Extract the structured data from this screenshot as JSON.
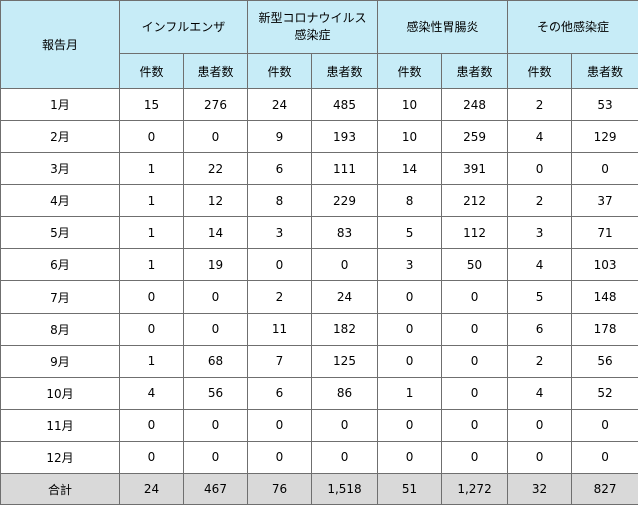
{
  "header": {
    "month_label": "報告月",
    "groups": [
      {
        "name": "インフルエンザ"
      },
      {
        "name": "新型コロナウイルス感染症"
      },
      {
        "name": "感染性胃腸炎"
      },
      {
        "name": "その他感染症"
      }
    ],
    "sub_count": "件数",
    "sub_patients": "患者数"
  },
  "rows": [
    {
      "month": "1月",
      "values": [
        "15",
        "276",
        "24",
        "485",
        "10",
        "248",
        "2",
        "53"
      ]
    },
    {
      "month": "2月",
      "values": [
        "0",
        "0",
        "9",
        "193",
        "10",
        "259",
        "4",
        "129"
      ]
    },
    {
      "month": "3月",
      "values": [
        "1",
        "22",
        "6",
        "111",
        "14",
        "391",
        "0",
        "0"
      ]
    },
    {
      "month": "4月",
      "values": [
        "1",
        "12",
        "8",
        "229",
        "8",
        "212",
        "2",
        "37"
      ]
    },
    {
      "month": "5月",
      "values": [
        "1",
        "14",
        "3",
        "83",
        "5",
        "112",
        "3",
        "71"
      ]
    },
    {
      "month": "6月",
      "values": [
        "1",
        "19",
        "0",
        "0",
        "3",
        "50",
        "4",
        "103"
      ]
    },
    {
      "month": "7月",
      "values": [
        "0",
        "0",
        "2",
        "24",
        "0",
        "0",
        "5",
        "148"
      ]
    },
    {
      "month": "8月",
      "values": [
        "0",
        "0",
        "11",
        "182",
        "0",
        "0",
        "6",
        "178"
      ]
    },
    {
      "month": "9月",
      "values": [
        "1",
        "68",
        "7",
        "125",
        "0",
        "0",
        "2",
        "56"
      ]
    },
    {
      "month": "10月",
      "values": [
        "4",
        "56",
        "6",
        "86",
        "1",
        "0",
        "4",
        "52"
      ]
    },
    {
      "month": "11月",
      "values": [
        "0",
        "0",
        "0",
        "0",
        "0",
        "0",
        "0",
        "0"
      ]
    },
    {
      "month": "12月",
      "values": [
        "0",
        "0",
        "0",
        "0",
        "0",
        "0",
        "0",
        "0"
      ]
    }
  ],
  "total": {
    "label": "合計",
    "values": [
      "24",
      "467",
      "76",
      "1,518",
      "51",
      "1,272",
      "32",
      "827"
    ]
  },
  "colors": {
    "header_bg": "#c7ecf7",
    "total_bg": "#d9d9d9",
    "border": "#6f6f6f"
  }
}
